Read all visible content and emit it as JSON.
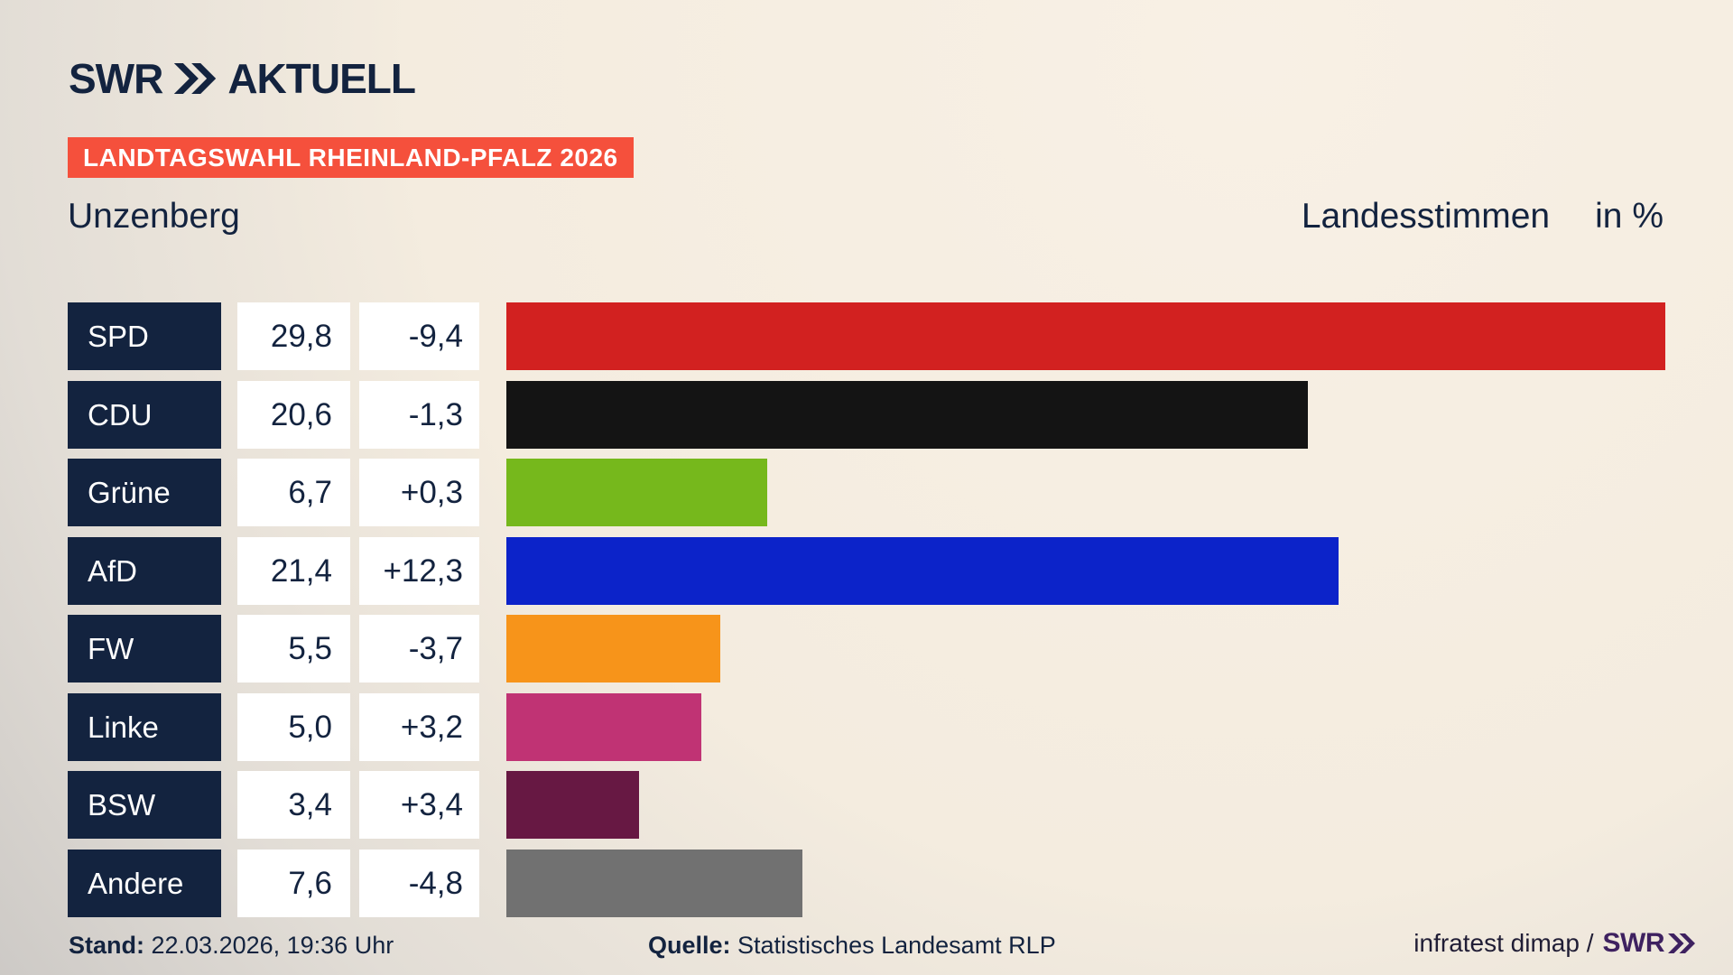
{
  "brand": {
    "logo_text": "SWR",
    "logo_suffix": "AKTUELL"
  },
  "header": {
    "badge": "LANDTAGSWAHL RHEINLAND-PFALZ 2026",
    "location": "Unzenberg",
    "measure": "Landesstimmen",
    "unit": "in %"
  },
  "footer": {
    "stand_label": "Stand:",
    "stand_value": " 22.03.2026, 19:36 Uhr",
    "quelle_label": "Quelle:",
    "quelle_value": " Statistisches Landesamt RLP",
    "credit_text": "infratest dimap /",
    "credit_logo": "SWR"
  },
  "colors": {
    "navy": "#13233f",
    "badge_red": "#f5503c",
    "background_cream": "#f8f0e5",
    "background_gray": "#c9c6c3",
    "footer_logo_purple": "#3e2160"
  },
  "chart_data": {
    "type": "bar",
    "title": "Landtagswahl Rheinland-Pfalz 2026 – Unzenberg, Landesstimmen in %",
    "categories": [
      "SPD",
      "CDU",
      "Grüne",
      "AfD",
      "FW",
      "Linke",
      "BSW",
      "Andere"
    ],
    "values": [
      29.8,
      20.6,
      6.7,
      21.4,
      5.5,
      5.0,
      3.4,
      7.6
    ],
    "value_labels": [
      "29,8",
      "20,6",
      "6,7",
      "21,4",
      "5,5",
      "5,0",
      "3,4",
      "7,6"
    ],
    "change_labels": [
      "-9,4",
      "-1,3",
      "+0,3",
      "+12,3",
      "-3,7",
      "+3,2",
      "+3,4",
      "-4,8"
    ],
    "bar_colors": [
      "#d22120",
      "#141414",
      "#76b81c",
      "#0c23c9",
      "#f7941a",
      "#c03374",
      "#671843",
      "#717171"
    ],
    "xlabel": "",
    "ylabel": "Landesstimmen in %",
    "xlim": [
      0,
      30
    ],
    "orientation": "horizontal",
    "grid": false,
    "legend": false
  }
}
